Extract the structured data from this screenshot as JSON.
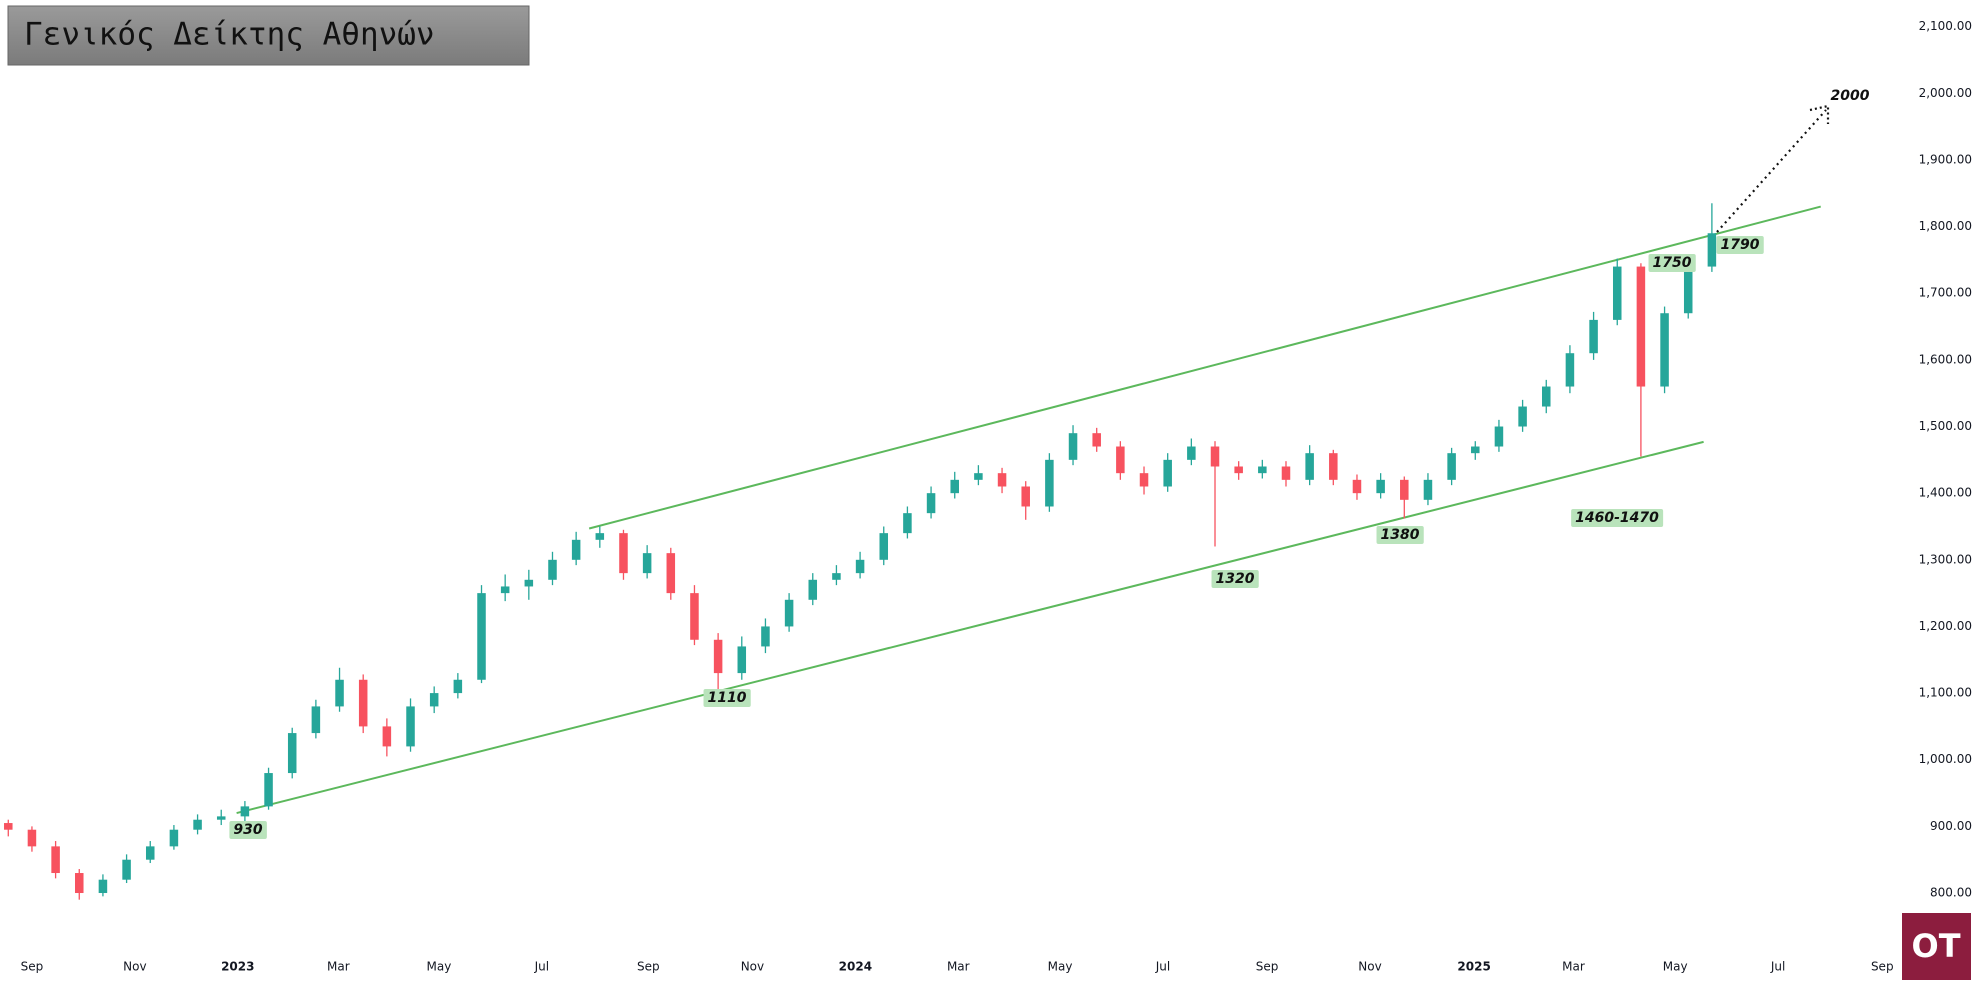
{
  "chart_data": {
    "type": "candlestick",
    "title": "Γενικός Δείκτης Αθηνών",
    "up_color": "#26a69a",
    "down_color": "#f7525f",
    "grid": false,
    "xlim": [
      -2.7,
      157.9
    ],
    "xticks": [
      {
        "value": 0,
        "label": "Sep"
      },
      {
        "value": 8.7,
        "label": "Nov"
      },
      {
        "value": 17.4,
        "label": "2023"
      },
      {
        "value": 25.9,
        "label": "Mar"
      },
      {
        "value": 34.4,
        "label": "May"
      },
      {
        "value": 43.1,
        "label": "Jul"
      },
      {
        "value": 52.1,
        "label": "Sep"
      },
      {
        "value": 60.9,
        "label": "Nov"
      },
      {
        "value": 69.6,
        "label": "2024"
      },
      {
        "value": 78.3,
        "label": "Mar"
      },
      {
        "value": 86.9,
        "label": "May"
      },
      {
        "value": 95.6,
        "label": "Jul"
      },
      {
        "value": 104.4,
        "label": "Sep"
      },
      {
        "value": 113.1,
        "label": "Nov"
      },
      {
        "value": 121.9,
        "label": "2025"
      },
      {
        "value": 130.3,
        "label": "Mar"
      },
      {
        "value": 138.9,
        "label": "May"
      },
      {
        "value": 147.6,
        "label": "Jul"
      },
      {
        "value": 156.4,
        "label": "Sep"
      }
    ],
    "ylim": [
      722,
      2140
    ],
    "yticks": [
      {
        "value": 800,
        "label": "800.00"
      },
      {
        "value": 900,
        "label": "900.00"
      },
      {
        "value": 1000,
        "label": "1,000.00"
      },
      {
        "value": 1100,
        "label": "1,100.00"
      },
      {
        "value": 1200,
        "label": "1,200.00"
      },
      {
        "value": 1300,
        "label": "1,300.00"
      },
      {
        "value": 1400,
        "label": "1,400.00"
      },
      {
        "value": 1500,
        "label": "1,500.00"
      },
      {
        "value": 1600,
        "label": "1,600.00"
      },
      {
        "value": 1700,
        "label": "1,700.00"
      },
      {
        "value": 1800,
        "label": "1,800.00"
      },
      {
        "value": 1900,
        "label": "1,900.00"
      },
      {
        "value": 2000,
        "label": "2,000.00"
      },
      {
        "value": 2100,
        "label": "2,100.00"
      }
    ],
    "x": [
      -2,
      0,
      2,
      4,
      6,
      8,
      10,
      12,
      14,
      16,
      18,
      20,
      22,
      24,
      26,
      28,
      30,
      32,
      34,
      36,
      38,
      40,
      42,
      44,
      46,
      48,
      50,
      52,
      54,
      56,
      58,
      60,
      62,
      64,
      66,
      68,
      70,
      72,
      74,
      76,
      78,
      80,
      82,
      84,
      86,
      88,
      90,
      92,
      94,
      96,
      98,
      100,
      102,
      104,
      106,
      108,
      110,
      112,
      114,
      116,
      118,
      120,
      122,
      124,
      126,
      128,
      130,
      132,
      134,
      136,
      138,
      140,
      142
    ],
    "open": [
      905,
      895,
      870,
      830,
      800,
      820,
      850,
      870,
      895,
      910,
      915,
      930,
      980,
      1040,
      1080,
      1120,
      1050,
      1020,
      1080,
      1100,
      1120,
      1250,
      1260,
      1270,
      1300,
      1330,
      1340,
      1280,
      1310,
      1250,
      1180,
      1130,
      1170,
      1200,
      1240,
      1270,
      1280,
      1300,
      1340,
      1370,
      1400,
      1420,
      1430,
      1410,
      1380,
      1450,
      1490,
      1470,
      1430,
      1410,
      1450,
      1470,
      1440,
      1430,
      1440,
      1420,
      1460,
      1420,
      1400,
      1420,
      1390,
      1420,
      1460,
      1470,
      1500,
      1530,
      1560,
      1610,
      1660,
      1740,
      1560,
      1670,
      1740
    ],
    "high": [
      910,
      900,
      878,
      836,
      828,
      858,
      878,
      902,
      918,
      925,
      938,
      988,
      1048,
      1090,
      1138,
      1128,
      1062,
      1092,
      1110,
      1130,
      1262,
      1278,
      1285,
      1312,
      1342,
      1350,
      1345,
      1322,
      1318,
      1262,
      1190,
      1185,
      1212,
      1250,
      1280,
      1292,
      1312,
      1350,
      1380,
      1410,
      1432,
      1442,
      1438,
      1418,
      1460,
      1502,
      1498,
      1478,
      1440,
      1460,
      1482,
      1478,
      1448,
      1450,
      1448,
      1472,
      1465,
      1428,
      1430,
      1425,
      1430,
      1468,
      1478,
      1510,
      1540,
      1570,
      1622,
      1672,
      1752,
      1745,
      1680,
      1750,
      1835
    ],
    "low": [
      885,
      862,
      822,
      790,
      795,
      815,
      845,
      865,
      888,
      902,
      908,
      925,
      972,
      1032,
      1072,
      1040,
      1005,
      1012,
      1070,
      1092,
      1115,
      1238,
      1240,
      1262,
      1292,
      1318,
      1270,
      1272,
      1240,
      1172,
      1105,
      1120,
      1160,
      1192,
      1232,
      1262,
      1272,
      1292,
      1332,
      1362,
      1392,
      1412,
      1400,
      1360,
      1372,
      1442,
      1462,
      1420,
      1398,
      1402,
      1442,
      1320,
      1420,
      1422,
      1410,
      1412,
      1412,
      1390,
      1392,
      1362,
      1382,
      1412,
      1450,
      1462,
      1492,
      1520,
      1550,
      1600,
      1652,
      1455,
      1550,
      1662,
      1732
    ],
    "close": [
      895,
      870,
      830,
      800,
      820,
      850,
      870,
      895,
      910,
      915,
      930,
      980,
      1040,
      1080,
      1120,
      1050,
      1020,
      1080,
      1100,
      1120,
      1250,
      1260,
      1270,
      1300,
      1330,
      1340,
      1280,
      1310,
      1250,
      1180,
      1130,
      1170,
      1200,
      1240,
      1270,
      1280,
      1300,
      1340,
      1370,
      1400,
      1420,
      1430,
      1410,
      1380,
      1450,
      1490,
      1470,
      1430,
      1410,
      1450,
      1470,
      1440,
      1430,
      1440,
      1420,
      1460,
      1420,
      1400,
      1420,
      1390,
      1420,
      1460,
      1470,
      1500,
      1530,
      1560,
      1610,
      1660,
      1740,
      1560,
      1670,
      1740,
      1790
    ],
    "trendlines": [
      {
        "color": "#5cb85c",
        "x": [
          47.1,
          151.2
        ],
        "y": [
          1347,
          1830
        ]
      },
      {
        "color": "#5cb85c",
        "x": [
          17.3,
          141.3
        ],
        "y": [
          920,
          1477
        ]
      }
    ],
    "annotations": [
      "930",
      "1110",
      "1320",
      "1380",
      "1460-1470",
      "1750",
      "1790",
      "2000"
    ]
  },
  "logo": "OT"
}
